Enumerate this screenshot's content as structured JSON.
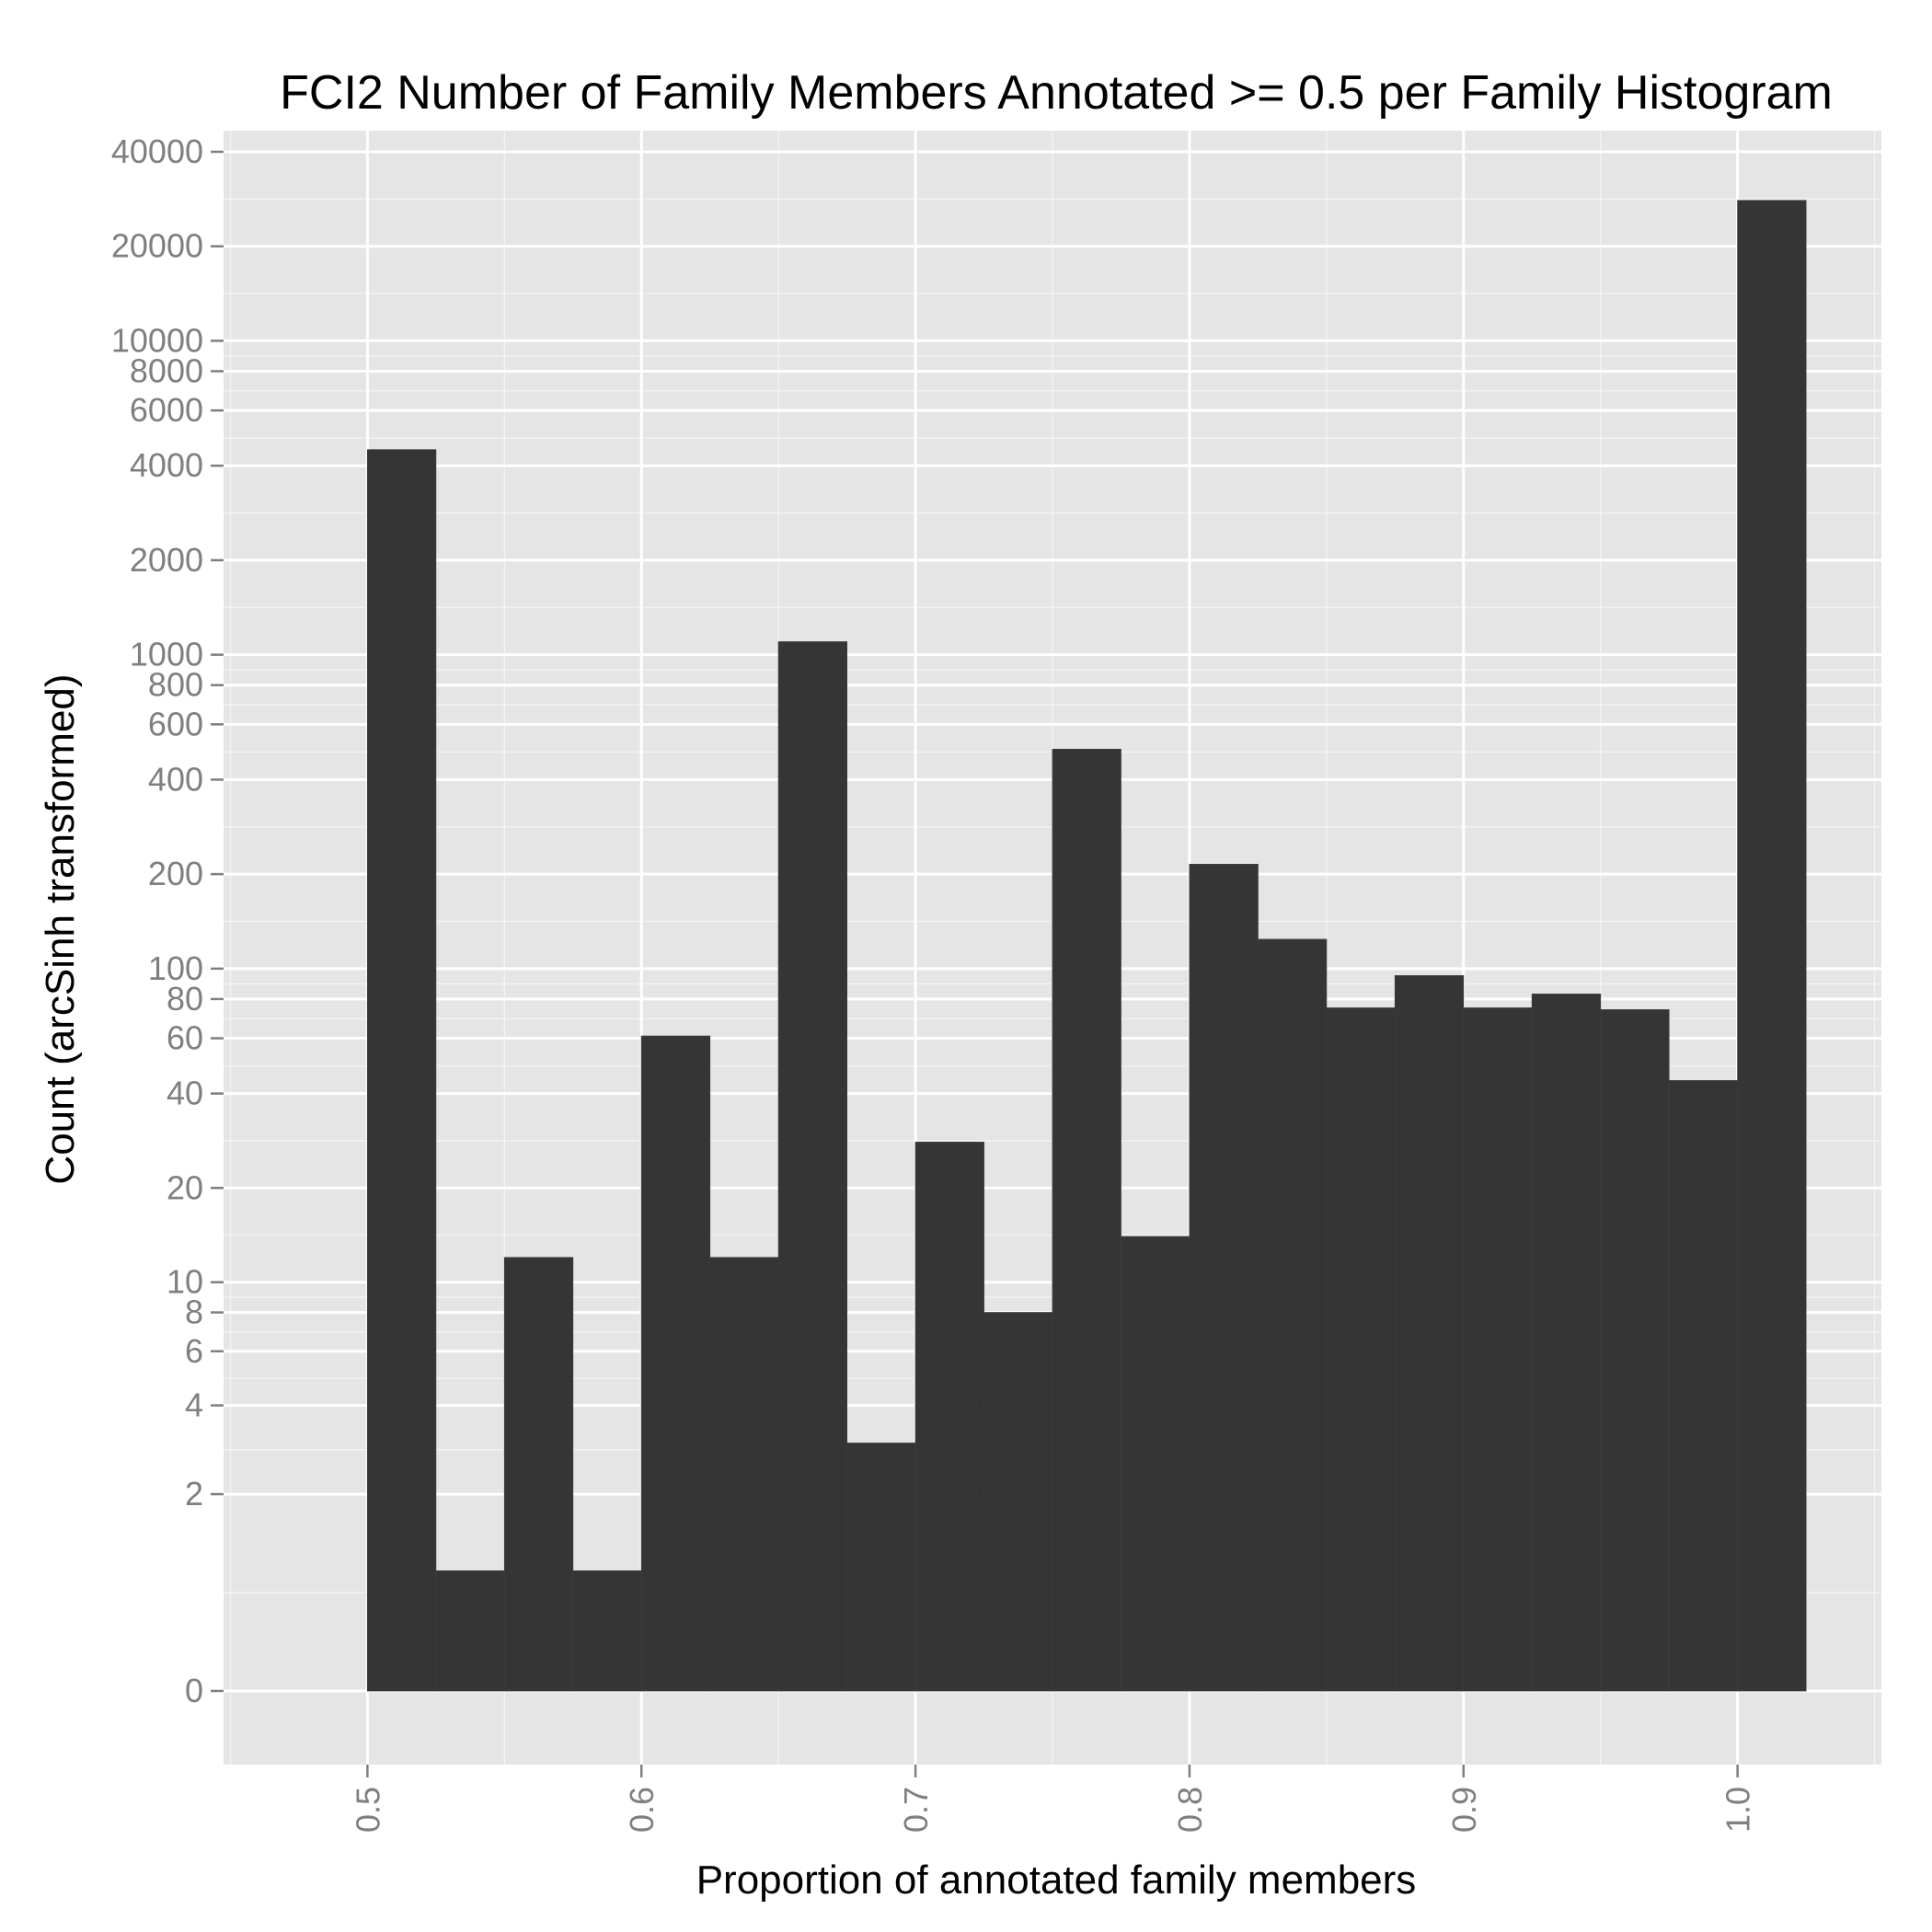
{
  "chart_data": {
    "type": "bar",
    "title": "FCI2 Number of Family Members Annotated >= 0.5 per Family Histogram",
    "xlabel": "Proportion of annotated family members",
    "ylabel": "Count (arcSinh transformed)",
    "y_scale": "arcsinh",
    "xlim": [
      0.4475,
      1.0525
    ],
    "x_ticks": [
      0.5,
      0.6,
      0.7,
      0.8,
      0.9,
      1.0
    ],
    "x_tick_labels": [
      "0.5",
      "0.6",
      "0.7",
      "0.8",
      "0.9",
      "1.0"
    ],
    "y_ticks": [
      0,
      2,
      4,
      6,
      8,
      10,
      20,
      40,
      60,
      80,
      100,
      200,
      400,
      600,
      800,
      1000,
      2000,
      4000,
      6000,
      8000,
      10000,
      20000,
      40000
    ],
    "y_tick_labels": [
      "0",
      "2",
      "4",
      "6",
      "8",
      "10",
      "20",
      "40",
      "60",
      "80",
      "100",
      "200",
      "400",
      "600",
      "800",
      "1000",
      "2000",
      "4000",
      "6000",
      "8000",
      "10000",
      "20000",
      "40000"
    ],
    "bin_width": 0.025,
    "bins": [
      {
        "x_start": 0.5,
        "x_end": 0.525,
        "count": 4500
      },
      {
        "x_start": 0.525,
        "x_end": 0.55,
        "count": 1
      },
      {
        "x_start": 0.55,
        "x_end": 0.575,
        "count": 12
      },
      {
        "x_start": 0.575,
        "x_end": 0.6,
        "count": 1
      },
      {
        "x_start": 0.6,
        "x_end": 0.625,
        "count": 61
      },
      {
        "x_start": 0.625,
        "x_end": 0.65,
        "count": 12
      },
      {
        "x_start": 0.65,
        "x_end": 0.675,
        "count": 1100
      },
      {
        "x_start": 0.675,
        "x_end": 0.7,
        "count": 3
      },
      {
        "x_start": 0.7,
        "x_end": 0.725,
        "count": 28
      },
      {
        "x_start": 0.725,
        "x_end": 0.75,
        "count": 8
      },
      {
        "x_start": 0.75,
        "x_end": 0.775,
        "count": 500
      },
      {
        "x_start": 0.775,
        "x_end": 0.8,
        "count": 14
      },
      {
        "x_start": 0.8,
        "x_end": 0.825,
        "count": 215
      },
      {
        "x_start": 0.825,
        "x_end": 0.85,
        "count": 124
      },
      {
        "x_start": 0.85,
        "x_end": 0.875,
        "count": 75
      },
      {
        "x_start": 0.875,
        "x_end": 0.9,
        "count": 95
      },
      {
        "x_start": 0.9,
        "x_end": 0.925,
        "count": 75
      },
      {
        "x_start": 0.925,
        "x_end": 0.95,
        "count": 83
      },
      {
        "x_start": 0.95,
        "x_end": 0.975,
        "count": 74
      },
      {
        "x_start": 0.975,
        "x_end": 1.0,
        "count": 44
      },
      {
        "x_start": 1.0,
        "x_end": 1.025,
        "count": 28000
      }
    ],
    "bar_color": "#353535",
    "panel_background": "#e5e5e5",
    "grid": true,
    "grid_color": "#ffffff",
    "legend": "none"
  }
}
